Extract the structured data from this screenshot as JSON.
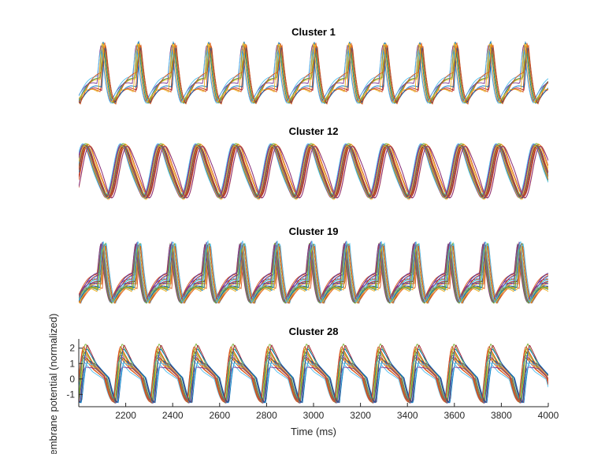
{
  "chart_data": [
    {
      "type": "line",
      "title": "Cluster 1",
      "period_ms": 150,
      "x_axis_visible": false,
      "y_axis_visible": false,
      "ylim": [
        -1.8,
        2.2
      ],
      "trace_count": 10
    },
    {
      "type": "line",
      "title": "Cluster 12",
      "period_ms": 160,
      "x_axis_visible": false,
      "y_axis_visible": false,
      "ylim": [
        -1.8,
        2.2
      ],
      "trace_count": 18
    },
    {
      "type": "line",
      "title": "Cluster 19",
      "period_ms": 148,
      "x_axis_visible": false,
      "y_axis_visible": false,
      "ylim": [
        -1.8,
        2.2
      ],
      "trace_count": 20
    },
    {
      "type": "line",
      "title": "Cluster 28",
      "period_ms": 157,
      "x_axis_visible": true,
      "y_axis_visible": true,
      "xlim": [
        2000,
        4000
      ],
      "ylim": [
        -1.8,
        2.6
      ],
      "xticks": [
        2200,
        2400,
        2600,
        2800,
        3000,
        3200,
        3400,
        3600,
        3800,
        4000
      ],
      "yticks": [
        2,
        1,
        0,
        -1
      ],
      "xlabel": "Time (ms)",
      "ylabel": "Membrane potential (normalized)",
      "trace_count": 16
    }
  ],
  "colors": {
    "series_palette": [
      "#0072BD",
      "#D95319",
      "#EDB120",
      "#7E2F8E",
      "#77AC30",
      "#4DBEEE",
      "#A2142F"
    ],
    "axis": "#262626"
  }
}
